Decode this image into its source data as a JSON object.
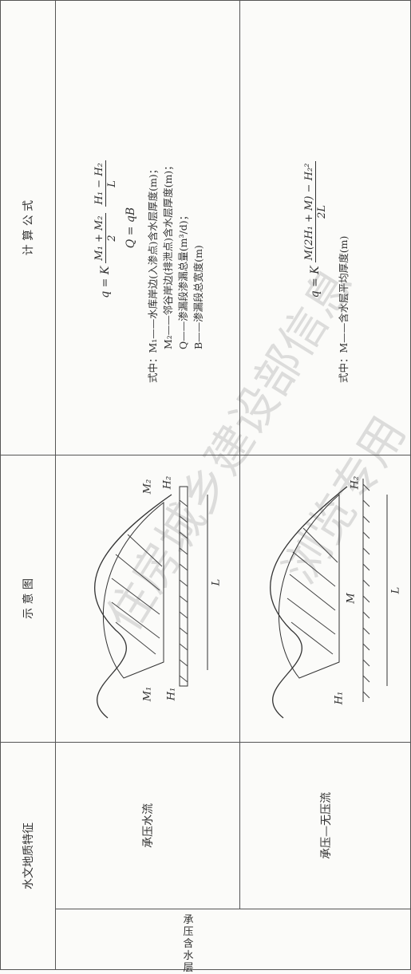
{
  "header": {
    "feature": "水文地质特征",
    "diagram": "示 意 图",
    "formula": "计 算 公 式"
  },
  "group": "承压含水层",
  "rows": [
    {
      "feature": "承压水流",
      "diagram_labels": {
        "m1": "M₁",
        "h1": "H₁",
        "m2": "M₂",
        "h2": "H₂",
        "l": "L"
      },
      "formula_lines": [
        [
          {
            "text": "q = K"
          },
          {
            "num": "M₁ + M₂",
            "den": "2"
          },
          {
            "num": "H₁ − H₂",
            "den": "L"
          }
        ],
        [
          {
            "text": "Q = qB"
          }
        ]
      ],
      "notes": [
        "式中：M₁——水库岸边(入渗点)含水层厚度(m)；",
        "M₂——邻谷岸边(排泄点)含水层厚度(m)；",
        "Q——渗漏段渗漏总量(m³/d)；",
        "B——渗漏段总宽度(m)"
      ]
    },
    {
      "feature": "承压—无压流",
      "diagram_labels": {
        "m": "M",
        "h1": "H₁",
        "h2": "H₂",
        "l": "L"
      },
      "formula_lines": [
        [
          {
            "text": "q = K"
          },
          {
            "num": "M(2H₁ + M) − H₂²",
            "den": "2L"
          }
        ]
      ],
      "notes": [
        "式中：M——含水层平均厚度(m)"
      ]
    }
  ],
  "watermark": [
    "住房城乡建设部信息",
    "浏览专用"
  ]
}
